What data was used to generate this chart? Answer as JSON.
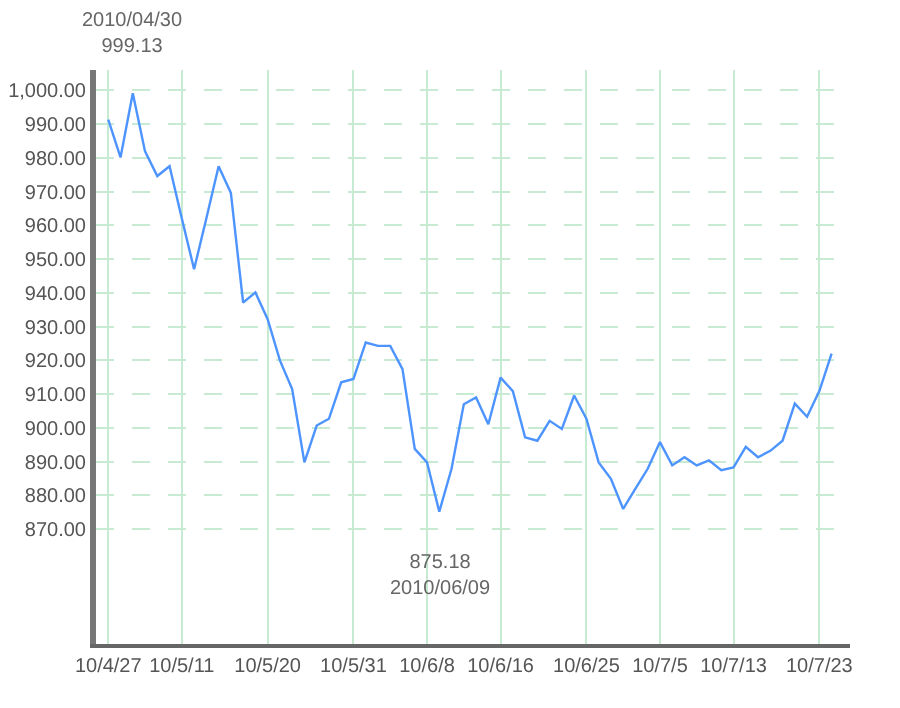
{
  "chart_data": {
    "type": "line",
    "color": "#4d94ff",
    "marker": "none",
    "grid": true,
    "categories": [
      "10/4/27",
      null,
      null,
      null,
      null,
      null,
      "10/5/11",
      null,
      null,
      null,
      null,
      null,
      null,
      "10/5/20",
      null,
      null,
      null,
      null,
      null,
      null,
      "10/5/31",
      null,
      null,
      null,
      null,
      null,
      "10/6/8",
      null,
      null,
      null,
      null,
      null,
      "10/6/16",
      null,
      null,
      null,
      null,
      null,
      null,
      "10/6/25",
      null,
      null,
      null,
      null,
      null,
      "10/7/5",
      null,
      null,
      null,
      null,
      null,
      "10/7/13",
      null,
      null,
      null,
      null,
      null,
      null,
      "10/7/23",
      null
    ],
    "values": [
      991.3,
      980.1,
      999.13,
      981.9,
      974.6,
      977.5,
      962,
      947,
      962,
      977.5,
      969.6,
      937.1,
      940.1,
      932.2,
      920,
      911.5,
      889.8,
      900.7,
      902.7,
      913.5,
      914.5,
      925.3,
      924.3,
      924.3,
      917.4,
      893.8,
      889.8,
      875.18,
      887.9,
      907,
      909,
      901.1,
      914.9,
      910.9,
      897.2,
      896.2,
      902.1,
      899.7,
      909.6,
      902.7,
      889.8,
      884.9,
      876,
      882,
      887.9,
      895.8,
      888.9,
      891.3,
      888.9,
      890.4,
      887.5,
      888.3,
      894.4,
      891.3,
      893.2,
      896.2,
      907.2,
      903.3,
      910.9,
      922
    ],
    "ylim": [
      836,
      1006
    ],
    "yticks": [
      {
        "value": 870,
        "label": "870.00"
      },
      {
        "value": 880,
        "label": "880.00"
      },
      {
        "value": 890,
        "label": "890.00"
      },
      {
        "value": 900,
        "label": "900.00"
      },
      {
        "value": 910,
        "label": "910.00"
      },
      {
        "value": 920,
        "label": "920.00"
      },
      {
        "value": 930,
        "label": "930.00"
      },
      {
        "value": 940,
        "label": "940.00"
      },
      {
        "value": 950,
        "label": "950.00"
      },
      {
        "value": 960,
        "label": "960.00"
      },
      {
        "value": 970,
        "label": "970.00"
      },
      {
        "value": 980,
        "label": "980.00"
      },
      {
        "value": 990,
        "label": "990.00"
      },
      {
        "value": 1000,
        "label": "1,000.00"
      }
    ],
    "annotations": [
      {
        "text": "2010/04/30\n999.13",
        "y": 999.13
      },
      {
        "text": "875.18\n2010/06/09",
        "y": 875.18
      }
    ]
  }
}
